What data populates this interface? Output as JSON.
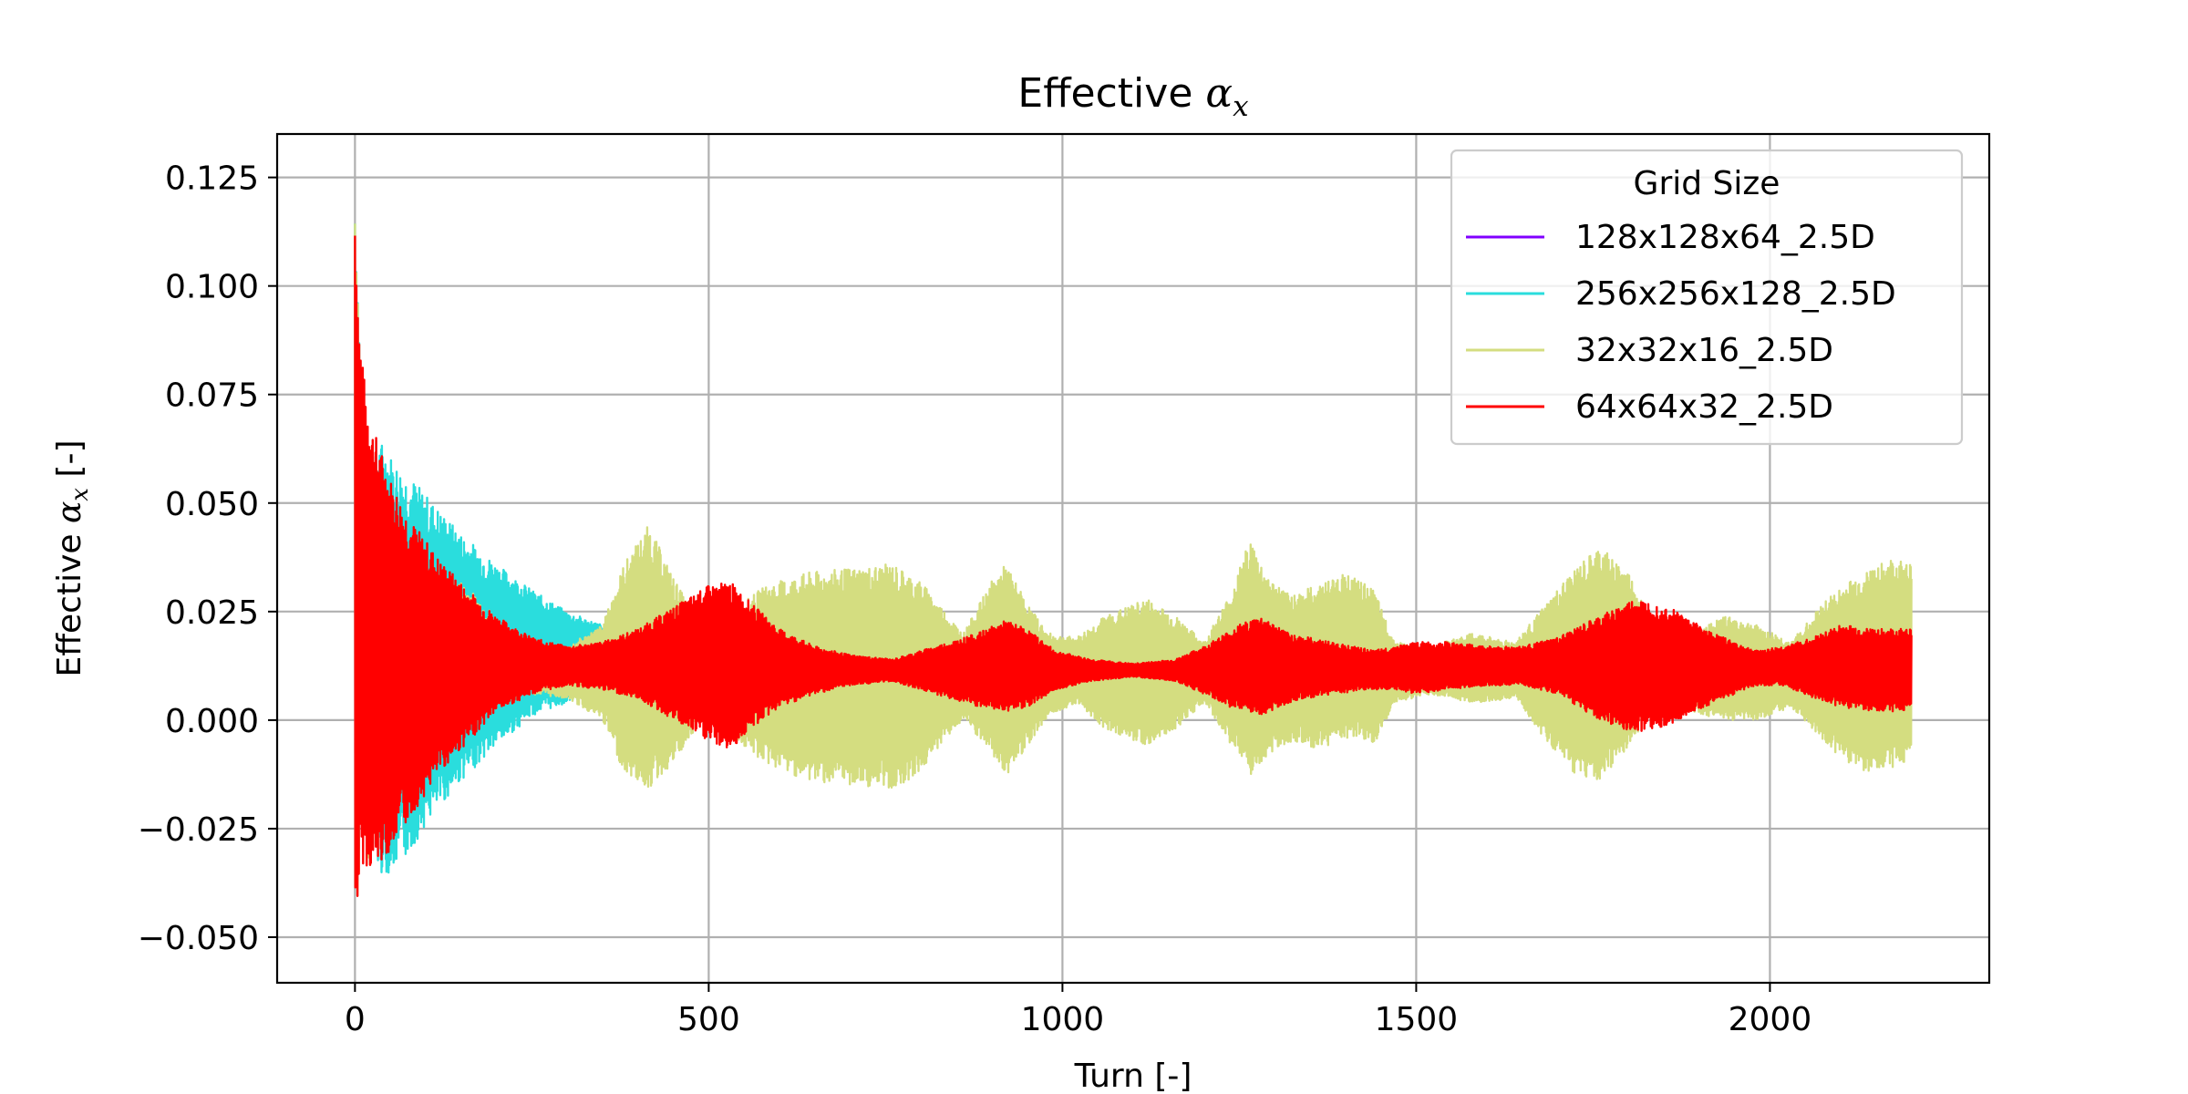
{
  "chart_data": {
    "type": "line",
    "title": "Effective ",
    "title_symbol": "α",
    "title_subscript": "x",
    "xlabel": "Turn [-]",
    "ylabel": "Effective ",
    "ylabel_symbol": "α",
    "ylabel_subscript": "x",
    "ylabel_suffix": " [-]",
    "xlim": [
      -110,
      2310
    ],
    "ylim": [
      -0.0605,
      0.135
    ],
    "xticks": [
      0,
      500,
      1000,
      1500,
      2000
    ],
    "xtick_labels": [
      "0",
      "500",
      "1000",
      "1500",
      "2000"
    ],
    "yticks": [
      -0.05,
      -0.025,
      0.0,
      0.025,
      0.05,
      0.075,
      0.1,
      0.125
    ],
    "ytick_labels": [
      "−0.050",
      "−0.025",
      "0.000",
      "0.025",
      "0.050",
      "0.075",
      "0.100",
      "0.125"
    ],
    "grid": true,
    "legend": {
      "title": "Grid Size",
      "placement": "top-right"
    },
    "series": [
      {
        "name": "128x128x64_2.5D",
        "color": "#8000ff",
        "end_turn": 0,
        "envelope": [
          [
            0,
            0.01,
            0.01
          ]
        ]
      },
      {
        "name": "256x256x128_2.5D",
        "color": "#2adddd",
        "end_turn": 370,
        "envelope": [
          [
            0,
            -0.05,
            0.127
          ],
          [
            10,
            -0.02,
            0.07
          ],
          [
            20,
            -0.032,
            0.066
          ],
          [
            40,
            -0.036,
            0.064
          ],
          [
            60,
            -0.034,
            0.059
          ],
          [
            80,
            -0.03,
            0.056
          ],
          [
            100,
            -0.024,
            0.052
          ],
          [
            150,
            -0.014,
            0.043
          ],
          [
            200,
            -0.006,
            0.036
          ],
          [
            250,
            0.001,
            0.03
          ],
          [
            300,
            0.004,
            0.025
          ],
          [
            350,
            0.006,
            0.022
          ],
          [
            370,
            0.007,
            0.02
          ]
        ]
      },
      {
        "name": "32x32x16_2.5D",
        "color": "#d4dd80",
        "end_turn": 2200,
        "envelope": [
          [
            0,
            -0.05,
            0.127
          ],
          [
            10,
            -0.03,
            0.07
          ],
          [
            20,
            -0.035,
            0.063
          ],
          [
            50,
            -0.022,
            0.05
          ],
          [
            100,
            -0.012,
            0.038
          ],
          [
            150,
            -0.004,
            0.032
          ],
          [
            200,
            0.002,
            0.024
          ],
          [
            250,
            0.006,
            0.019
          ],
          [
            300,
            0.005,
            0.017
          ],
          [
            350,
            0.0,
            0.022
          ],
          [
            380,
            -0.012,
            0.036
          ],
          [
            415,
            -0.016,
            0.045
          ],
          [
            450,
            -0.01,
            0.033
          ],
          [
            480,
            -0.003,
            0.024
          ],
          [
            510,
            0.002,
            0.02
          ],
          [
            540,
            -0.005,
            0.026
          ],
          [
            580,
            -0.01,
            0.031
          ],
          [
            640,
            -0.014,
            0.034
          ],
          [
            700,
            -0.015,
            0.035
          ],
          [
            760,
            -0.016,
            0.036
          ],
          [
            800,
            -0.012,
            0.032
          ],
          [
            830,
            -0.005,
            0.026
          ],
          [
            860,
            0.0,
            0.02
          ],
          [
            900,
            -0.008,
            0.032
          ],
          [
            920,
            -0.013,
            0.036
          ],
          [
            950,
            -0.006,
            0.027
          ],
          [
            980,
            0.001,
            0.02
          ],
          [
            1020,
            0.004,
            0.019
          ],
          [
            1060,
            -0.002,
            0.024
          ],
          [
            1120,
            -0.006,
            0.028
          ],
          [
            1160,
            -0.002,
            0.024
          ],
          [
            1200,
            0.004,
            0.018
          ],
          [
            1240,
            -0.006,
            0.03
          ],
          [
            1265,
            -0.014,
            0.042
          ],
          [
            1290,
            -0.008,
            0.033
          ],
          [
            1320,
            -0.005,
            0.029
          ],
          [
            1360,
            -0.007,
            0.031
          ],
          [
            1400,
            -0.004,
            0.034
          ],
          [
            1440,
            -0.006,
            0.03
          ],
          [
            1470,
            0.004,
            0.018
          ],
          [
            1520,
            0.006,
            0.017
          ],
          [
            1580,
            0.004,
            0.02
          ],
          [
            1640,
            0.005,
            0.018
          ],
          [
            1680,
            -0.004,
            0.026
          ],
          [
            1720,
            -0.012,
            0.034
          ],
          [
            1760,
            -0.014,
            0.04
          ],
          [
            1800,
            -0.006,
            0.034
          ],
          [
            1830,
            0.0,
            0.024
          ],
          [
            1880,
            0.002,
            0.02
          ],
          [
            1940,
            -0.0,
            0.024
          ],
          [
            1980,
            0.0,
            0.022
          ],
          [
            2030,
            0.003,
            0.018
          ],
          [
            2080,
            -0.006,
            0.028
          ],
          [
            2130,
            -0.012,
            0.034
          ],
          [
            2170,
            -0.011,
            0.037
          ],
          [
            2200,
            -0.01,
            0.036
          ]
        ]
      },
      {
        "name": "64x64x32_2.5D",
        "color": "#ff0000",
        "end_turn": 2200,
        "envelope": [
          [
            0,
            -0.05,
            0.124
          ],
          [
            5,
            -0.04,
            0.095
          ],
          [
            12,
            -0.033,
            0.08
          ],
          [
            25,
            -0.035,
            0.068
          ],
          [
            50,
            -0.03,
            0.056
          ],
          [
            80,
            -0.022,
            0.046
          ],
          [
            120,
            -0.012,
            0.037
          ],
          [
            160,
            -0.005,
            0.03
          ],
          [
            200,
            0.002,
            0.024
          ],
          [
            250,
            0.006,
            0.019
          ],
          [
            300,
            0.008,
            0.017
          ],
          [
            350,
            0.007,
            0.018
          ],
          [
            400,
            0.005,
            0.021
          ],
          [
            450,
            0.0,
            0.026
          ],
          [
            500,
            -0.005,
            0.031
          ],
          [
            530,
            -0.007,
            0.032
          ],
          [
            560,
            -0.002,
            0.027
          ],
          [
            600,
            0.003,
            0.021
          ],
          [
            650,
            0.006,
            0.017
          ],
          [
            700,
            0.008,
            0.015
          ],
          [
            760,
            0.009,
            0.014
          ],
          [
            820,
            0.006,
            0.017
          ],
          [
            880,
            0.003,
            0.02
          ],
          [
            920,
            0.002,
            0.023
          ],
          [
            950,
            0.003,
            0.021
          ],
          [
            990,
            0.007,
            0.016
          ],
          [
            1040,
            0.009,
            0.014
          ],
          [
            1100,
            0.01,
            0.013
          ],
          [
            1160,
            0.009,
            0.014
          ],
          [
            1200,
            0.006,
            0.017
          ],
          [
            1250,
            0.002,
            0.022
          ],
          [
            1280,
            0.001,
            0.024
          ],
          [
            1320,
            0.004,
            0.02
          ],
          [
            1380,
            0.006,
            0.018
          ],
          [
            1440,
            0.007,
            0.016
          ],
          [
            1470,
            0.007,
            0.017
          ],
          [
            1500,
            0.006,
            0.018
          ],
          [
            1540,
            0.007,
            0.018
          ],
          [
            1600,
            0.008,
            0.017
          ],
          [
            1650,
            0.008,
            0.017
          ],
          [
            1700,
            0.006,
            0.019
          ],
          [
            1760,
            0.0,
            0.024
          ],
          [
            1810,
            -0.003,
            0.028
          ],
          [
            1860,
            -0.001,
            0.026
          ],
          [
            1920,
            0.004,
            0.02
          ],
          [
            1980,
            0.008,
            0.016
          ],
          [
            2020,
            0.008,
            0.017
          ],
          [
            2060,
            0.005,
            0.019
          ],
          [
            2100,
            0.003,
            0.022
          ],
          [
            2150,
            0.002,
            0.021
          ],
          [
            2200,
            0.002,
            0.021
          ]
        ]
      }
    ]
  }
}
